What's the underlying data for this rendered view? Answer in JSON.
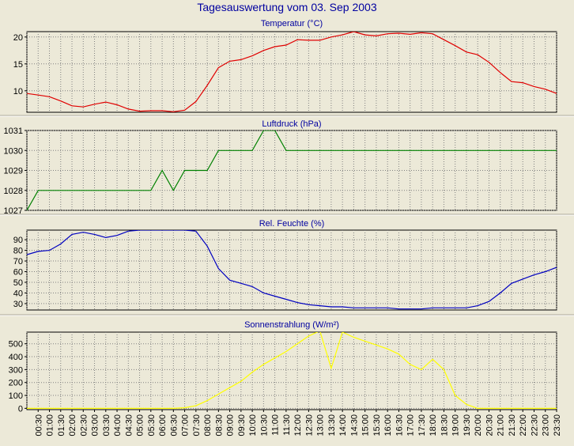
{
  "page": {
    "title": "Tagesauswertung vom 03. Sep 2003"
  },
  "chart_data": [
    {
      "type": "line",
      "title": "Temperatur (°C)",
      "ylim": [
        6,
        21
      ],
      "yticks": [
        10,
        15,
        20
      ],
      "color": "#e00000",
      "x": [
        "00:00",
        "00:30",
        "01:00",
        "01:30",
        "02:00",
        "02:30",
        "03:00",
        "03:30",
        "04:00",
        "04:30",
        "05:00",
        "05:30",
        "06:00",
        "06:30",
        "07:00",
        "07:30",
        "08:00",
        "08:30",
        "09:00",
        "09:30",
        "10:00",
        "10:30",
        "11:00",
        "11:30",
        "12:00",
        "12:30",
        "13:00",
        "13:30",
        "14:00",
        "14:30",
        "15:00",
        "15:30",
        "16:00",
        "16:30",
        "17:00",
        "17:30",
        "18:00",
        "18:30",
        "19:00",
        "19:30",
        "20:00",
        "20:30",
        "21:00",
        "21:30",
        "22:00",
        "22:30",
        "23:00",
        "23:30"
      ],
      "values": [
        9.5,
        9.2,
        8.9,
        8.1,
        7.2,
        7.0,
        7.5,
        7.9,
        7.4,
        6.6,
        6.2,
        6.3,
        6.3,
        6.1,
        6.4,
        8.0,
        11.0,
        14.3,
        15.5,
        15.8,
        16.5,
        17.5,
        18.2,
        18.5,
        19.5,
        19.4,
        19.4,
        20.0,
        20.4,
        21.0,
        20.4,
        20.2,
        20.6,
        20.7,
        20.5,
        20.8,
        20.6,
        19.5,
        18.4,
        17.2,
        16.7,
        15.3,
        13.4,
        11.7,
        11.5,
        10.8,
        10.3,
        9.5
      ],
      "grid": true
    },
    {
      "type": "line",
      "title": "Luftdruck (hPa)",
      "ylim": [
        1027,
        1031
      ],
      "yticks": [
        1027,
        1028,
        1029,
        1030,
        1031
      ],
      "color": "#008000",
      "x": [
        "00:00",
        "00:30",
        "01:00",
        "01:30",
        "02:00",
        "02:30",
        "03:00",
        "03:30",
        "04:00",
        "04:30",
        "05:00",
        "05:30",
        "06:00",
        "06:30",
        "07:00",
        "07:30",
        "08:00",
        "08:30",
        "09:00",
        "09:30",
        "10:00",
        "10:30",
        "11:00",
        "11:30",
        "12:00",
        "12:30",
        "13:00",
        "13:30",
        "14:00",
        "14:30",
        "15:00",
        "15:30",
        "16:00",
        "16:30",
        "17:00",
        "17:30",
        "18:00",
        "18:30",
        "19:00",
        "19:30",
        "20:00",
        "20:30",
        "21:00",
        "21:30",
        "22:00",
        "22:30",
        "23:00",
        "23:30"
      ],
      "values": [
        1027,
        1028,
        1028,
        1028,
        1028,
        1028,
        1028,
        1028,
        1028,
        1028,
        1028,
        1028,
        1029,
        1028,
        1029,
        1029,
        1029,
        1030,
        1030,
        1030,
        1030,
        1031,
        1031,
        1030,
        1030,
        1030,
        1030,
        1030,
        1030,
        1030,
        1030,
        1030,
        1030,
        1030,
        1030,
        1030,
        1030,
        1030,
        1030,
        1030,
        1030,
        1030,
        1030,
        1030,
        1030,
        1030,
        1030,
        1030
      ],
      "grid": true
    },
    {
      "type": "line",
      "title": "Rel. Feuchte (%)",
      "ylim": [
        24,
        99
      ],
      "yticks": [
        30,
        40,
        50,
        60,
        70,
        80,
        90
      ],
      "color": "#0000c0",
      "x": [
        "00:00",
        "00:30",
        "01:00",
        "01:30",
        "02:00",
        "02:30",
        "03:00",
        "03:30",
        "04:00",
        "04:30",
        "05:00",
        "05:30",
        "06:00",
        "06:30",
        "07:00",
        "07:30",
        "08:00",
        "08:30",
        "09:00",
        "09:30",
        "10:00",
        "10:30",
        "11:00",
        "11:30",
        "12:00",
        "12:30",
        "13:00",
        "13:30",
        "14:00",
        "14:30",
        "15:00",
        "15:30",
        "16:00",
        "16:30",
        "17:00",
        "17:30",
        "18:00",
        "18:30",
        "19:00",
        "19:30",
        "20:00",
        "20:30",
        "21:00",
        "21:30",
        "22:00",
        "22:30",
        "23:00",
        "23:30"
      ],
      "values": [
        76,
        79,
        80,
        86,
        95,
        97,
        95,
        92,
        94,
        98,
        99,
        99,
        99,
        99,
        99,
        98,
        84,
        63,
        52,
        49,
        46,
        40,
        37,
        34,
        31,
        29,
        28,
        27,
        27,
        26,
        26,
        26,
        26,
        25,
        25,
        25,
        26,
        26,
        26,
        26,
        28,
        32,
        40,
        49,
        53,
        57,
        60,
        64
      ],
      "grid": true
    },
    {
      "type": "line",
      "title": "Sonnenstrahlung (W/m²)",
      "ylim": [
        -10,
        590
      ],
      "yticks": [
        0,
        100,
        200,
        300,
        400,
        500
      ],
      "color": "#ffff00",
      "x": [
        "00:00",
        "00:30",
        "01:00",
        "01:30",
        "02:00",
        "02:30",
        "03:00",
        "03:30",
        "04:00",
        "04:30",
        "05:00",
        "05:30",
        "06:00",
        "06:30",
        "07:00",
        "07:30",
        "08:00",
        "08:30",
        "09:00",
        "09:30",
        "10:00",
        "10:30",
        "11:00",
        "11:30",
        "12:00",
        "12:30",
        "13:00",
        "13:30",
        "14:00",
        "14:30",
        "15:00",
        "15:30",
        "16:00",
        "16:30",
        "17:00",
        "17:30",
        "18:00",
        "18:30",
        "19:00",
        "19:30",
        "20:00",
        "20:30",
        "21:00",
        "21:30",
        "22:00",
        "22:30",
        "23:00",
        "23:30"
      ],
      "values": [
        0,
        0,
        0,
        0,
        0,
        0,
        0,
        0,
        0,
        0,
        0,
        0,
        0,
        0,
        5,
        20,
        60,
        110,
        160,
        210,
        280,
        340,
        390,
        440,
        500,
        560,
        600,
        310,
        590,
        550,
        520,
        490,
        460,
        420,
        340,
        300,
        380,
        300,
        100,
        30,
        0,
        0,
        0,
        0,
        0,
        0,
        0,
        0
      ],
      "grid": true
    }
  ],
  "x_axis": {
    "labels": [
      "00:30",
      "01:00",
      "01:30",
      "02:00",
      "02:30",
      "03:00",
      "03:30",
      "04:00",
      "04:30",
      "05:00",
      "05:30",
      "06:00",
      "06:30",
      "07:00",
      "07:30",
      "08:00",
      "08:30",
      "09:00",
      "09:30",
      "10:00",
      "10:30",
      "11:00",
      "11:30",
      "12:00",
      "12:30",
      "13:00",
      "13:30",
      "14:00",
      "14:30",
      "15:00",
      "15:30",
      "16:00",
      "16:30",
      "17:00",
      "17:30",
      "18:00",
      "18:30",
      "19:00",
      "19:30",
      "20:00",
      "20:30",
      "21:00",
      "21:30",
      "22:00",
      "22:30",
      "23:00",
      "23:30"
    ]
  }
}
